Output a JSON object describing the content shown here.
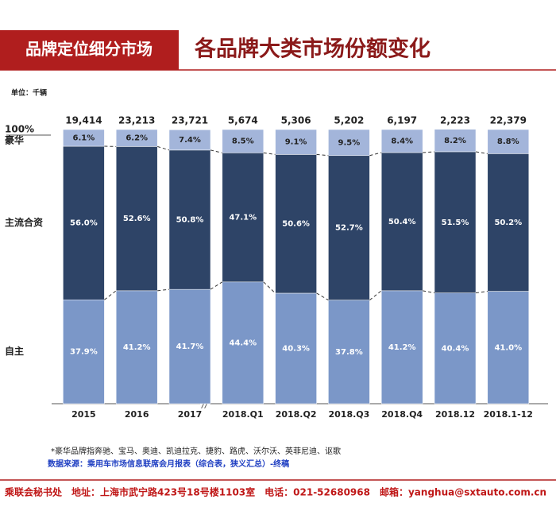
{
  "header": {
    "section": "品牌定位细分市场",
    "title": "各品牌大类市场份额变化"
  },
  "chart_data": {
    "type": "stacked_bar",
    "unit": "单位：千辆",
    "categories": [
      "2015",
      "2016",
      "2017",
      "2018.Q1",
      "2018.Q2",
      "2018.Q3",
      "2018.Q4",
      "2018.12",
      "2018.1-12"
    ],
    "totals": {
      "values": [
        19414,
        23213,
        23721,
        5674,
        5306,
        5202,
        6197,
        2223,
        22379
      ],
      "value_labels": [
        "19,414",
        "23,213",
        "23,721",
        "5,674",
        "5,306",
        "5,202",
        "6,197",
        "2,223",
        "22,379"
      ]
    },
    "series": [
      {
        "name": "自主",
        "color": "#7b97c8",
        "values": [
          37.9,
          41.2,
          41.7,
          44.4,
          40.3,
          37.8,
          41.2,
          40.4,
          41.0
        ],
        "value_labels": [
          "37.9%",
          "41.2%",
          "41.7%",
          "44.4%",
          "40.3%",
          "37.8%",
          "41.2%",
          "40.4%",
          "41.0%"
        ]
      },
      {
        "name": "主流合资",
        "color": "#2e4467",
        "values": [
          56.0,
          52.6,
          50.8,
          47.1,
          50.6,
          52.7,
          50.4,
          51.5,
          50.2
        ],
        "value_labels": [
          "56.0%",
          "52.6%",
          "50.8%",
          "47.1%",
          "50.6%",
          "52.7%",
          "50.4%",
          "51.5%",
          "50.2%"
        ]
      },
      {
        "name": "豪华",
        "color": "#a3b5da",
        "values": [
          6.1,
          6.2,
          7.4,
          8.5,
          9.1,
          9.5,
          8.4,
          8.2,
          8.8
        ],
        "value_labels": [
          "6.1%",
          "6.2%",
          "7.4%",
          "8.5%",
          "9.1%",
          "9.5%",
          "8.4%",
          "8.2%",
          "8.8%"
        ]
      }
    ],
    "ylim": [
      0,
      100
    ],
    "yticks": [
      {
        "value": 100,
        "label": "100%"
      }
    ]
  },
  "notes": [
    "*豪华品牌指奔驰、宝马、奥迪、凯迪拉克、捷豹、路虎、沃尔沃、英菲尼迪、讴歌",
    "数据来源：乘用车市场信息联席会月报表（综合表，狭义汇总）-终稿"
  ],
  "footer": "乘联会秘书处　地址：上海市武宁路423号18号楼1103室　电话：021-52680968　邮箱：yanghua@sxtauto.com.cn"
}
